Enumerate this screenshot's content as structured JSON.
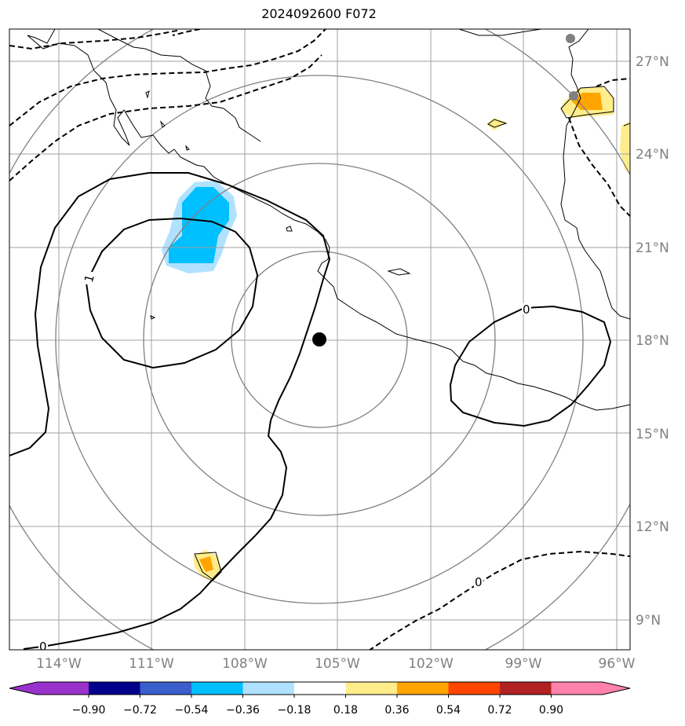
{
  "title": "2024092600 F072",
  "lat_labels": [
    "27°N",
    "24°N",
    "21°N",
    "18°N",
    "15°N",
    "12°N",
    "9°N"
  ],
  "lon_labels": [
    "114°W",
    "111°W",
    "108°W",
    "105°W",
    "102°W",
    "99°W",
    "96°W"
  ],
  "colorbar": {
    "ticks": [
      "−0.90",
      "−0.72",
      "−0.54",
      "−0.36",
      "−0.18",
      "0.18",
      "0.36",
      "0.54",
      "0.72",
      "0.90"
    ],
    "colors": [
      "#9932cc",
      "#00008b",
      "#3a5fcd",
      "#00bfff",
      "#b0e2ff",
      "#ffffff",
      "#ffec8b",
      "#ffa500",
      "#ff4500",
      "#b22222",
      "#ff82ab"
    ]
  },
  "contour_labels": [
    "1",
    "0",
    "0",
    "0"
  ],
  "colors": {
    "shade_light_blue": "#b0e2ff",
    "shade_blue": "#00bfff",
    "shade_yellow": "#ffec8b",
    "shade_orange": "#ffa500",
    "grid": "#a0a0a0",
    "range_ring": "#808080",
    "center": "#000000"
  }
}
